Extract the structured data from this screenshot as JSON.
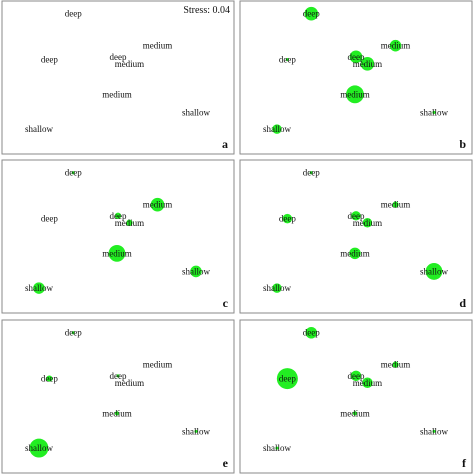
{
  "chart_data": {
    "type": "scatter",
    "description_type": "nMDS ordination bubble plots",
    "stress_label": "Stress: 0.04",
    "bubble_color": "#22ee22",
    "axes_visible": false,
    "grid": false,
    "shared_points": [
      {
        "label": "deep",
        "x": 0.285,
        "y": 0.93
      },
      {
        "label": "deep",
        "x": 0.17,
        "y": 0.6
      },
      {
        "label": "deep",
        "x": 0.5,
        "y": 0.62
      },
      {
        "label": "medium",
        "x": 0.69,
        "y": 0.7
      },
      {
        "label": "medium",
        "x": 0.555,
        "y": 0.57
      },
      {
        "label": "medium",
        "x": 0.495,
        "y": 0.35
      },
      {
        "label": "shallow",
        "x": 0.875,
        "y": 0.22
      },
      {
        "label": "shallow",
        "x": 0.12,
        "y": 0.1
      }
    ],
    "panels": [
      {
        "letter": "a",
        "show_stress": true,
        "bubble_sizes": [
          0,
          0,
          0,
          0,
          0,
          0,
          0,
          0
        ]
      },
      {
        "letter": "b",
        "show_stress": false,
        "bubble_sizes": [
          0.65,
          0.15,
          0.6,
          0.55,
          0.65,
          0.85,
          0.15,
          0.45
        ]
      },
      {
        "letter": "c",
        "show_stress": false,
        "bubble_sizes": [
          0.15,
          0,
          0.3,
          0.65,
          0.3,
          0.8,
          0.55,
          0.55
        ]
      },
      {
        "letter": "d",
        "show_stress": false,
        "bubble_sizes": [
          0.15,
          0.45,
          0.45,
          0.3,
          0.45,
          0.55,
          0.8,
          0.45
        ]
      },
      {
        "letter": "e",
        "show_stress": false,
        "bubble_sizes": [
          0.15,
          0.3,
          0.15,
          0,
          0,
          0.2,
          0.1,
          0.9
        ]
      },
      {
        "letter": "f",
        "show_stress": false,
        "bubble_sizes": [
          0.55,
          1.0,
          0.5,
          0.3,
          0.5,
          0.2,
          0.1,
          0.1
        ]
      }
    ]
  }
}
